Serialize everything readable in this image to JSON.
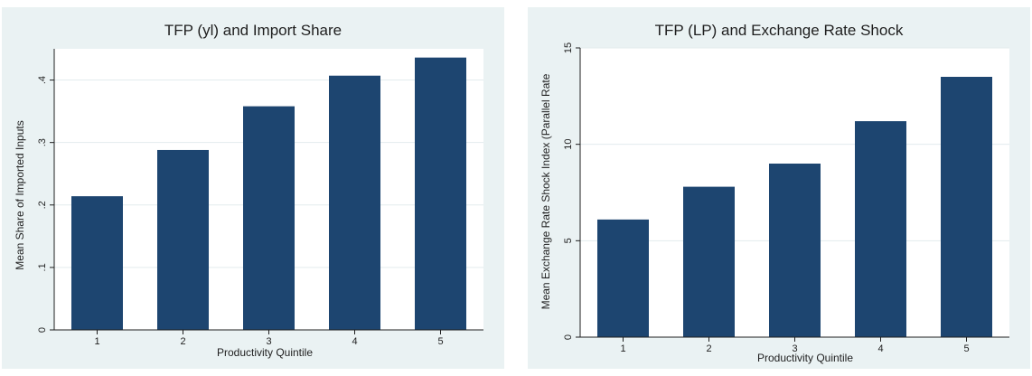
{
  "chart_data": [
    {
      "type": "bar",
      "title": "TFP (yl) and Import Share",
      "xlabel": "Productivity Quintile",
      "ylabel": "Mean Share of Imported Inputs",
      "categories": [
        "1",
        "2",
        "3",
        "4",
        "5"
      ],
      "values": [
        0.214,
        0.288,
        0.358,
        0.407,
        0.436
      ],
      "ylim": [
        0,
        0.45
      ],
      "yticks": [
        0,
        0.1,
        0.2,
        0.3,
        0.4
      ],
      "ytick_labels": [
        "0",
        ".1",
        ".2",
        ".3",
        ".4"
      ],
      "bar_color": "#1d4570",
      "grid": true
    },
    {
      "type": "bar",
      "title": "TFP (LP) and Exchange Rate Shock",
      "xlabel": "Productivity Quintile",
      "ylabel": "Mean Exchange Rate Shock Index (Parallel Rate",
      "categories": [
        "1",
        "2",
        "3",
        "4",
        "5"
      ],
      "values": [
        6.1,
        7.8,
        9.0,
        11.2,
        13.5
      ],
      "ylim": [
        0,
        15
      ],
      "yticks": [
        0,
        5,
        10,
        15
      ],
      "ytick_labels": [
        "0",
        "5",
        "10",
        "15"
      ],
      "bar_color": "#1d4570",
      "grid": true
    }
  ]
}
